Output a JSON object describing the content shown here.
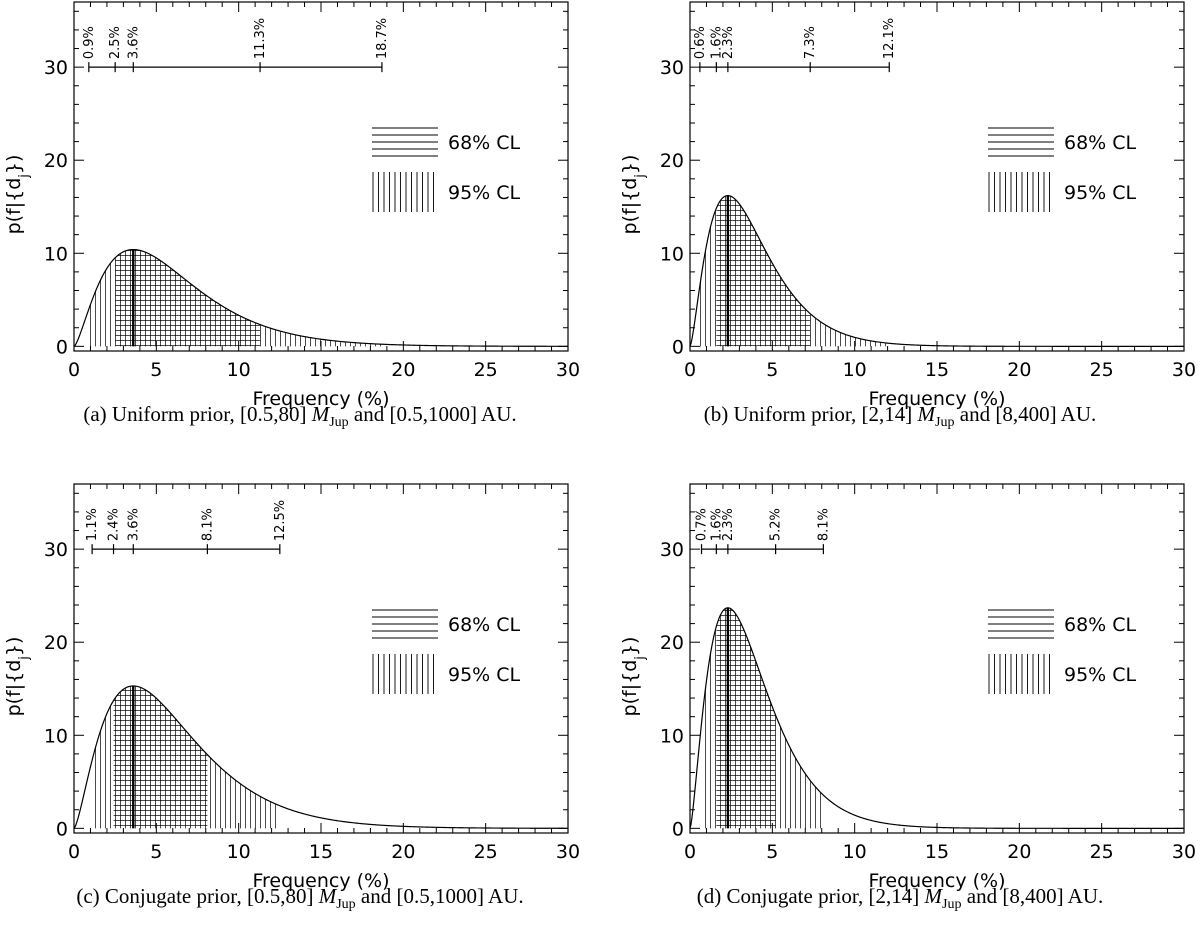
{
  "chart_data": [
    {
      "type": "area",
      "panel": "a",
      "caption": {
        "prefix": "(a) Uniform prior, [0.5,80] ",
        "mass_symbol": "M",
        "mass_sub": "Jup",
        "suffix": " and [0.5,1000] AU."
      },
      "xlabel": "Frequency (%)",
      "ylabel": "p(f|{d",
      "ylabel_sub": "j",
      "ylabel_end": "})",
      "xlim": [
        0,
        30
      ],
      "ylim": [
        -0.5,
        37
      ],
      "xticks": [
        0,
        5,
        10,
        15,
        20,
        25,
        30
      ],
      "yticks": [
        0,
        10,
        20,
        30
      ],
      "curve": {
        "mode": 3.6,
        "peak": 10.4
      },
      "intervals": {
        "ci95": [
          0.9,
          18.7
        ],
        "ci68": [
          2.5,
          11.3
        ]
      },
      "bar": {
        "y": 30,
        "values": [
          0.9,
          2.5,
          3.6,
          11.3,
          18.7
        ],
        "labels": [
          "0.9%",
          "2.5%",
          "3.6%",
          "11.3%",
          "18.7%"
        ]
      },
      "legend": [
        {
          "label": "68% CL",
          "pattern": "horizontal"
        },
        {
          "label": "95% CL",
          "pattern": "vertical"
        }
      ]
    },
    {
      "type": "area",
      "panel": "b",
      "caption": {
        "prefix": "(b) Uniform prior, [2,14] ",
        "mass_symbol": "M",
        "mass_sub": "Jup",
        "suffix": " and [8,400] AU."
      },
      "xlabel": "Frequency (%)",
      "ylabel": "p(f|{d",
      "ylabel_sub": "j",
      "ylabel_end": "})",
      "xlim": [
        0,
        30
      ],
      "ylim": [
        -0.5,
        37
      ],
      "xticks": [
        0,
        5,
        10,
        15,
        20,
        25,
        30
      ],
      "yticks": [
        0,
        10,
        20,
        30
      ],
      "curve": {
        "mode": 2.3,
        "peak": 16.2
      },
      "intervals": {
        "ci95": [
          0.6,
          12.1
        ],
        "ci68": [
          1.6,
          7.3
        ]
      },
      "bar": {
        "y": 30,
        "values": [
          0.6,
          1.6,
          2.3,
          7.3,
          12.1
        ],
        "labels": [
          "0.6%",
          "1.6%",
          "2.3%",
          "7.3%",
          "12.1%"
        ]
      },
      "legend": [
        {
          "label": "68% CL",
          "pattern": "horizontal"
        },
        {
          "label": "95% CL",
          "pattern": "vertical"
        }
      ]
    },
    {
      "type": "area",
      "panel": "c",
      "caption": {
        "prefix": "(c) Conjugate prior, [0.5,80] ",
        "mass_symbol": "M",
        "mass_sub": "Jup",
        "suffix": " and [0.5,1000] AU."
      },
      "xlabel": "Frequency (%)",
      "ylabel": "p(f|{d",
      "ylabel_sub": "j",
      "ylabel_end": "})",
      "xlim": [
        0,
        30
      ],
      "ylim": [
        -0.5,
        37
      ],
      "xticks": [
        0,
        5,
        10,
        15,
        20,
        25,
        30
      ],
      "yticks": [
        0,
        10,
        20,
        30
      ],
      "curve": {
        "mode": 3.6,
        "peak": 15.3
      },
      "intervals": {
        "ci95": [
          1.1,
          12.5
        ],
        "ci68": [
          2.4,
          8.1
        ]
      },
      "bar": {
        "y": 30,
        "values": [
          1.1,
          2.4,
          3.6,
          8.1,
          12.5
        ],
        "labels": [
          "1.1%",
          "2.4%",
          "3.6%",
          "8.1%",
          "12.5%"
        ]
      },
      "legend": [
        {
          "label": "68% CL",
          "pattern": "horizontal"
        },
        {
          "label": "95% CL",
          "pattern": "vertical"
        }
      ]
    },
    {
      "type": "area",
      "panel": "d",
      "caption": {
        "prefix": "(d) Conjugate prior, [2,14] ",
        "mass_symbol": "M",
        "mass_sub": "Jup",
        "suffix": " and [8,400] AU."
      },
      "xlabel": "Frequency (%)",
      "ylabel": "p(f|{d",
      "ylabel_sub": "j",
      "ylabel_end": "})",
      "xlim": [
        0,
        30
      ],
      "ylim": [
        -0.5,
        37
      ],
      "xticks": [
        0,
        5,
        10,
        15,
        20,
        25,
        30
      ],
      "yticks": [
        0,
        10,
        20,
        30
      ],
      "curve": {
        "mode": 2.3,
        "peak": 23.7
      },
      "intervals": {
        "ci95": [
          0.7,
          8.1
        ],
        "ci68": [
          1.6,
          5.2
        ]
      },
      "bar": {
        "y": 30,
        "values": [
          0.7,
          1.6,
          2.3,
          5.2,
          8.1
        ],
        "labels": [
          "0.7%",
          "1.6%",
          "2.3%",
          "5.2%",
          "8.1%"
        ]
      },
      "legend": [
        {
          "label": "68% CL",
          "pattern": "horizontal"
        },
        {
          "label": "95% CL",
          "pattern": "vertical"
        }
      ]
    }
  ]
}
